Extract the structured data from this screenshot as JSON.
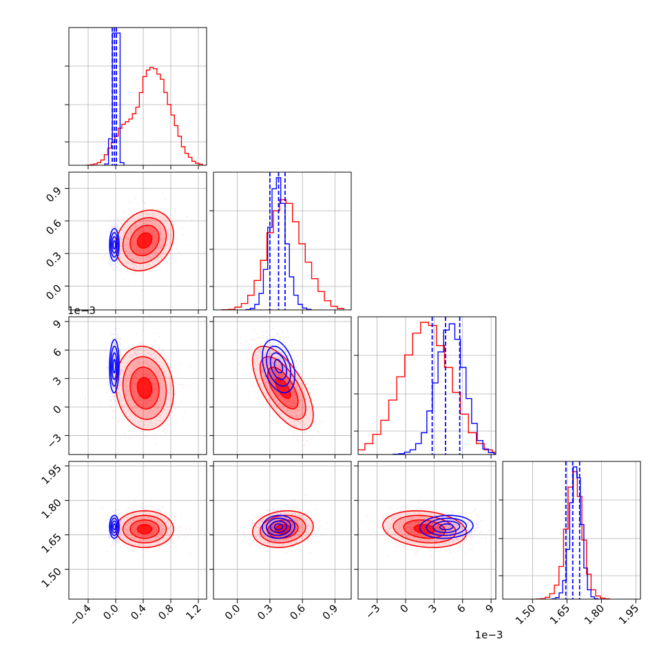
{
  "chart_data": {
    "type": "corner",
    "parameters": [
      {
        "id": "p1",
        "ticks": [
          -0.4,
          0.0,
          0.4,
          0.8,
          1.2
        ],
        "tick_labels": [
          "−0.4",
          "0.0",
          "0.4",
          "0.8",
          "1.2"
        ],
        "range": [
          -0.68,
          1.32
        ],
        "offset_label": ""
      },
      {
        "id": "p2",
        "ticks": [
          0.0,
          0.3,
          0.6,
          0.9
        ],
        "tick_labels": [
          "0.0",
          "0.3",
          "0.6",
          "0.9"
        ],
        "range": [
          -0.22,
          1.05
        ],
        "offset_label": ""
      },
      {
        "id": "p3",
        "ticks": [
          -3,
          0,
          3,
          6,
          9
        ],
        "tick_labels": [
          "−3",
          "0",
          "3",
          "6",
          "9"
        ],
        "range": [
          -5.0,
          9.5
        ],
        "offset_label": "1e−3"
      },
      {
        "id": "p4",
        "ticks": [
          1.5,
          1.65,
          1.8,
          1.95
        ],
        "tick_labels": [
          "1.50",
          "1.65",
          "1.80",
          "1.95"
        ],
        "range": [
          1.37,
          1.97
        ],
        "offset_label": ""
      }
    ],
    "series": [
      {
        "color": "#ff0000",
        "mean": [
          0.42,
          0.42,
          2.0,
          1.675
        ],
        "std": [
          0.21,
          0.14,
          2.2,
          0.04
        ],
        "corr": [
          [
            1,
            0.2,
            -0.1,
            0.0
          ],
          [
            0.2,
            1,
            -0.65,
            0.15
          ],
          [
            -0.1,
            -0.65,
            1,
            -0.2
          ],
          [
            0.0,
            0.15,
            -0.2,
            1
          ]
        ],
        "quantiles": null,
        "hist_1d": {
          "p1": [
            0.1,
            0.4,
            1,
            2,
            4,
            8,
            13,
            17,
            22,
            28,
            31,
            33,
            35,
            39,
            44,
            55,
            67,
            72,
            74,
            73,
            69,
            65,
            55,
            46,
            38,
            30,
            22,
            14,
            9,
            6,
            3,
            1.5,
            0.8
          ],
          "p2": [
            0.1,
            0.3,
            1.5,
            3.5,
            8,
            16,
            27,
            42,
            54,
            60,
            58,
            48,
            36,
            26,
            17,
            10,
            5,
            2,
            0.8
          ],
          "p3": [
            0.5,
            1.5,
            3,
            7,
            13,
            22,
            35,
            50,
            64,
            78,
            85,
            83,
            70,
            56,
            40,
            26,
            14,
            7,
            3,
            1.5,
            0.5
          ],
          "p4": [
            0.1,
            0.3,
            1.2,
            3.5,
            9,
            21,
            45,
            72,
            82,
            66,
            38,
            16,
            6,
            2,
            0.7,
            0.2
          ]
        }
      },
      {
        "color": "#0000ff",
        "mean": [
          -0.02,
          0.38,
          4.3,
          1.685
        ],
        "std": [
          0.035,
          0.075,
          1.4,
          0.025
        ],
        "corr": [
          [
            1,
            0.0,
            0.05,
            0.0
          ],
          [
            0.0,
            1,
            -0.35,
            0.05
          ],
          [
            0.05,
            -0.35,
            1,
            0.1
          ],
          [
            0.0,
            0.05,
            0.1,
            1
          ]
        ],
        "quantiles": [
          [
            -0.05,
            -0.02,
            0.01
          ],
          [
            0.3,
            0.38,
            0.44
          ],
          [
            2.8,
            4.2,
            5.7
          ],
          [
            1.645,
            1.675,
            1.705
          ]
        ],
        "hist_1d": {
          "p1": [
            1,
            20,
            100,
            100,
            2
          ],
          "p2": [
            0.2,
            0.8,
            3,
            9,
            22,
            45,
            66,
            72,
            58,
            36,
            18,
            8,
            3,
            1,
            0.3
          ],
          "p3": [
            0.2,
            0.5,
            1.5,
            3,
            7,
            14,
            28,
            46,
            66,
            80,
            84,
            74,
            56,
            36,
            20,
            9,
            3.5,
            1.2,
            0.4
          ],
          "p4": [
            0.2,
            1,
            4,
            12,
            32,
            62,
            85,
            78,
            48,
            20,
            6,
            1.5,
            0.3
          ]
        }
      }
    ],
    "contour_levels_sigma": [
      0.5,
      1.0,
      1.5,
      2.0
    ],
    "grid": true,
    "quantile_line_style": "dashed",
    "xlabel": "",
    "ylabel": ""
  }
}
